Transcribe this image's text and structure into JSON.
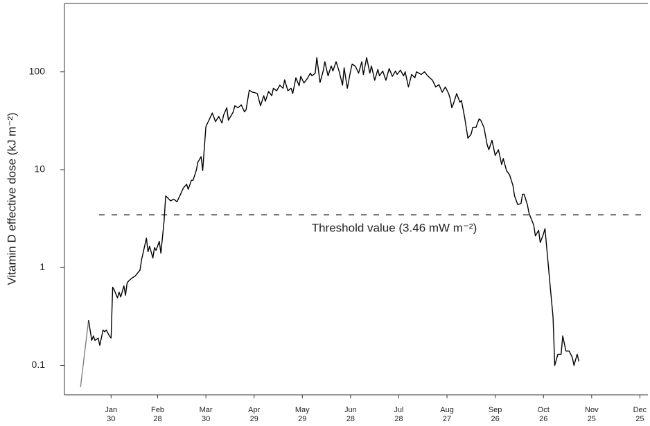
{
  "chart_data": {
    "type": "line",
    "y_label": "Vitamin D effective dose (kJ m⁻²)",
    "log_y": true,
    "xlim": [
      1,
      364
    ],
    "ylim": [
      0.05,
      500
    ],
    "yticks": [
      0.1,
      1,
      10,
      100
    ],
    "xticks": [
      {
        "value": 30,
        "label": "Jan\n30"
      },
      {
        "value": 59,
        "label": "Feb\n28"
      },
      {
        "value": 89,
        "label": "Mar\n30"
      },
      {
        "value": 119,
        "label": "Apr\n29"
      },
      {
        "value": 149,
        "label": "May\n29"
      },
      {
        "value": 179,
        "label": "Jun\n28"
      },
      {
        "value": 209,
        "label": "Jul\n28"
      },
      {
        "value": 239,
        "label": "Aug\n27"
      },
      {
        "value": 269,
        "label": "Sep\n26"
      },
      {
        "value": 299,
        "label": "Oct\n26"
      },
      {
        "value": 329,
        "label": "Nov\n25"
      },
      {
        "value": 359,
        "label": "Dec\n25"
      }
    ],
    "threshold": {
      "value": 3.46,
      "label": "Threshold value (3.46 mW m⁻²)"
    },
    "series": [
      {
        "color": "#808080",
        "x": [
          11,
          16
        ],
        "values": [
          0.06,
          0.29
        ]
      },
      {
        "color": "#000000",
        "x": [
          16,
          18,
          19,
          20,
          22,
          23,
          25,
          26,
          27,
          29,
          30,
          31,
          32,
          34,
          35,
          36,
          38,
          39,
          40,
          41,
          43,
          45,
          48,
          49,
          52,
          53,
          54,
          56,
          57,
          58,
          60,
          61,
          63,
          64,
          67,
          69,
          71,
          73,
          75,
          77,
          78,
          80,
          81,
          83,
          84,
          86,
          87,
          89,
          90,
          92,
          93,
          95,
          97,
          99,
          100,
          102,
          103,
          106,
          107,
          109,
          111,
          113,
          114,
          116,
          118,
          120,
          121,
          123,
          125,
          126,
          128,
          130,
          131,
          133,
          135,
          137,
          138,
          140,
          142,
          143,
          145,
          147,
          148,
          150,
          152,
          154,
          155,
          157,
          158,
          160,
          162,
          163,
          165,
          167,
          168,
          170,
          172,
          174,
          175,
          177,
          179,
          180,
          182,
          184,
          186,
          187,
          189,
          191,
          192,
          194,
          196,
          197,
          199,
          201,
          203,
          205,
          207,
          208,
          210,
          212,
          213,
          215,
          217,
          219,
          220,
          223,
          225,
          227,
          230,
          232,
          234,
          236,
          238,
          240,
          241,
          242,
          243,
          245,
          247,
          248,
          250,
          252,
          254,
          255,
          257,
          259,
          260,
          262,
          264,
          265,
          267,
          269,
          271,
          273,
          274,
          276,
          278,
          280,
          281,
          283,
          285,
          286,
          287,
          289,
          290,
          293,
          294,
          296,
          297,
          299,
          300,
          303,
          305,
          306,
          308,
          310,
          311,
          313,
          315,
          317,
          318,
          320,
          321
        ],
        "values": [
          0.29,
          0.18,
          0.2,
          0.18,
          0.19,
          0.16,
          0.23,
          0.22,
          0.23,
          0.2,
          0.19,
          0.63,
          0.59,
          0.49,
          0.56,
          0.5,
          0.65,
          0.52,
          0.7,
          0.73,
          0.78,
          0.82,
          0.94,
          1.2,
          2.0,
          1.45,
          1.65,
          1.25,
          1.6,
          1.5,
          1.85,
          1.4,
          3.0,
          5.4,
          4.8,
          5.0,
          4.7,
          5.5,
          6.5,
          7.1,
          6.3,
          7.8,
          7.8,
          9.8,
          11.9,
          13.6,
          9.8,
          27.5,
          29.8,
          35,
          38,
          31,
          35,
          30,
          36,
          43,
          32,
          39,
          45,
          43,
          46,
          39,
          41,
          65,
          62,
          61,
          60,
          45,
          57,
          50,
          63,
          57,
          68,
          64,
          73,
          68,
          83,
          64,
          68,
          60,
          87,
          72,
          90,
          77,
          85,
          97,
          91,
          97,
          140,
          78,
          102,
          127,
          91,
          115,
          102,
          127,
          100,
          73,
          110,
          68,
          102,
          120,
          114,
          97,
          127,
          94,
          140,
          97,
          115,
          82,
          106,
          91,
          102,
          82,
          108,
          90,
          102,
          94,
          104,
          91,
          100,
          70,
          94,
          87,
          100,
          94,
          100,
          91,
          82,
          70,
          74,
          62,
          70,
          60,
          53,
          43,
          47,
          60,
          49,
          51,
          34,
          21,
          23,
          27,
          27,
          33,
          32,
          27,
          18,
          16,
          20,
          14,
          16,
          11.3,
          13,
          9.8,
          8.8,
          6.9,
          5.4,
          4.4,
          4.5,
          5.6,
          5.6,
          4.4,
          3.6,
          2.7,
          2.1,
          2.4,
          1.8,
          2.2,
          2.5,
          0.7,
          0.31,
          0.1,
          0.13,
          0.13,
          0.2,
          0.14,
          0.14,
          0.12,
          0.1,
          0.13,
          0.11
        ]
      }
    ]
  }
}
